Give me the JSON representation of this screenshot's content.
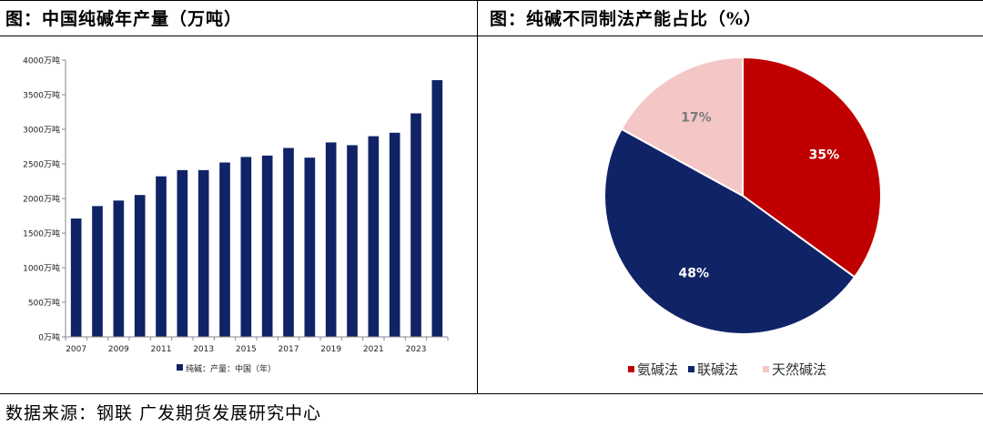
{
  "left_panel": {
    "title": "图：中国纯碱年产量（万吨）"
  },
  "right_panel": {
    "title": "图：纯碱不同制法产能占比（%）"
  },
  "footer": {
    "source": "数据来源：钢联 广发期货发展研究中心"
  },
  "colors": {
    "navy": "#102366",
    "red": "#c00000",
    "pink": "#f4c6c6"
  },
  "chart_data": [
    {
      "type": "bar",
      "title": "",
      "categories": [
        "2007",
        "2008",
        "2009",
        "2010",
        "2011",
        "2012",
        "2013",
        "2014",
        "2015",
        "2016",
        "2017",
        "2018",
        "2019",
        "2020",
        "2021",
        "2022",
        "2023",
        "2024"
      ],
      "x_tick_labels": [
        "2007",
        "2009",
        "2011",
        "2013",
        "2015",
        "2017",
        "2019",
        "2021",
        "2023"
      ],
      "series": [
        {
          "name": "纯碱：产量：中国（年）",
          "values": [
            1710,
            1890,
            1970,
            2050,
            2320,
            2410,
            2410,
            2520,
            2600,
            2620,
            2730,
            2590,
            2810,
            2770,
            2900,
            2950,
            3230,
            3710
          ]
        }
      ],
      "ylim": [
        0,
        4000
      ],
      "y_tick_labels": [
        "0万吨",
        "500万吨",
        "1000万吨",
        "1500万吨",
        "2000万吨",
        "2500万吨",
        "3000万吨",
        "3500万吨",
        "4000万吨"
      ],
      "grid": false,
      "legend_position": "bottom"
    },
    {
      "type": "pie",
      "title": "",
      "slices": [
        {
          "label": "氨碱法",
          "value": 35,
          "display": "35%",
          "color": "#c00000"
        },
        {
          "label": "联碱法",
          "value": 48,
          "display": "48%",
          "color": "#102366"
        },
        {
          "label": "天然碱法",
          "value": 17,
          "display": "17%",
          "color": "#f4c6c6"
        }
      ],
      "legend_position": "bottom"
    }
  ]
}
